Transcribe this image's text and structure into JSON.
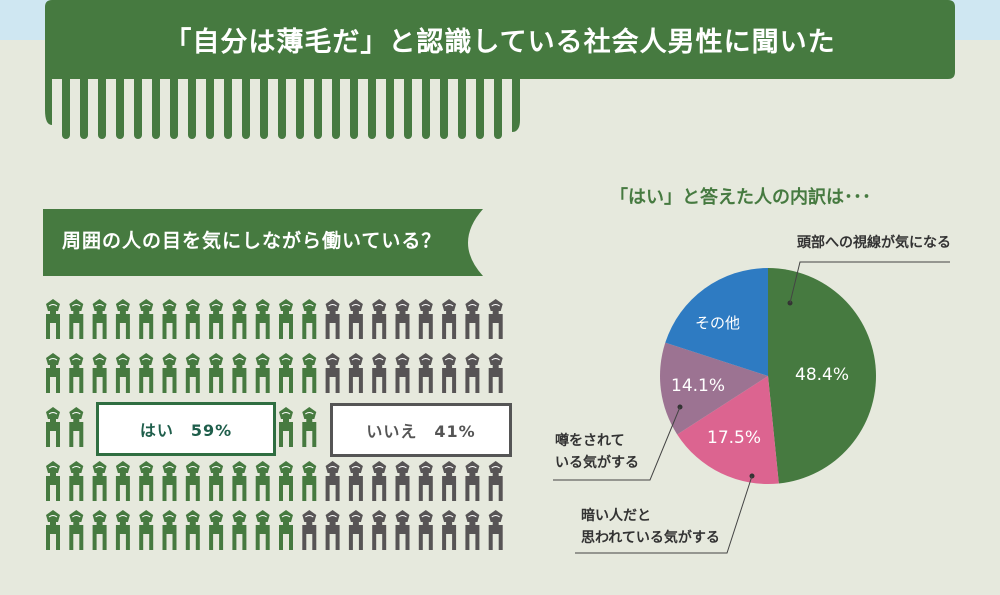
{
  "header": {
    "title": "「自分は薄毛だ」と認識している社会人男性に聞いた"
  },
  "question": {
    "title": "周囲の人の目を気にしながら働いている？"
  },
  "pictogram": {
    "yes_label": "はい　59%",
    "no_label": "いいえ　41%",
    "yes_percent": 59,
    "no_percent": 41,
    "colors": {
      "yes": "#467a40",
      "no": "#575455"
    },
    "rows": [
      {
        "yes": 12,
        "no": 8
      },
      {
        "yes": 12,
        "no": 8
      },
      {
        "yes": 4,
        "no": 0
      },
      {
        "yes": 12,
        "no": 8
      },
      {
        "yes": 11,
        "no": 9
      }
    ]
  },
  "chart_data": {
    "type": "pie",
    "title": "「はい」と答えた人の内訳は･･･",
    "slices": [
      {
        "label": "頭部への視線が気になる",
        "value": 48.4,
        "value_label": "48.4%",
        "color": "#467a40"
      },
      {
        "label": "暗い人だと思われている気がする",
        "label_lines": [
          "暗い人だと",
          "思われている気がする"
        ],
        "value": 17.5,
        "value_label": "17.5%",
        "color": "#dc6490"
      },
      {
        "label": "噂をされている気がする",
        "label_lines": [
          "噂をされて",
          "いる気がする"
        ],
        "value": 14.1,
        "value_label": "14.1%",
        "color": "#9c7392"
      },
      {
        "label": "その他",
        "value": 20.0,
        "color": "#2e7bc2"
      }
    ]
  }
}
